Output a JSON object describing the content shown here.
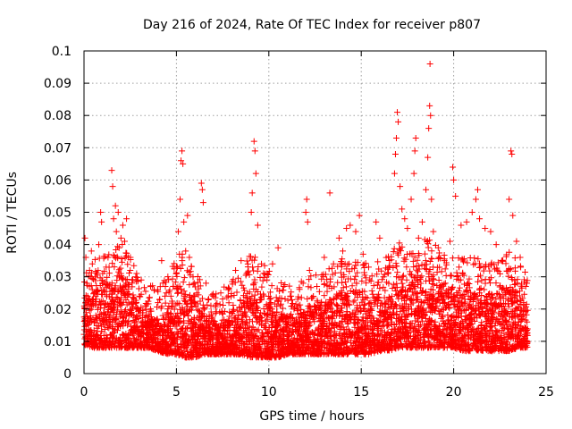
{
  "chart_data": {
    "type": "scatter",
    "title": "Day 216 of 2024, Rate Of TEC Index for receiver p807",
    "xlabel": "GPS time / hours",
    "ylabel": "ROTI / TECUs",
    "xlim": [
      0,
      25
    ],
    "ylim": [
      0,
      0.1
    ],
    "x_ticks": [
      "0",
      "5",
      "10",
      "15",
      "20",
      "25"
    ],
    "y_ticks": [
      "0",
      "0.01",
      "0.02",
      "0.03",
      "0.04",
      "0.05",
      "0.06",
      "0.07",
      "0.08",
      "0.09",
      "0.1"
    ],
    "grid": true,
    "marker": "+",
    "color": "#ff0000",
    "points": [
      [
        0.05,
        0.042
      ],
      [
        0.1,
        0.036
      ],
      [
        0.15,
        0.028
      ],
      [
        0.2,
        0.024
      ],
      [
        0.3,
        0.032
      ],
      [
        0.4,
        0.038
      ],
      [
        0.45,
        0.034
      ],
      [
        0.6,
        0.03
      ],
      [
        0.8,
        0.04
      ],
      [
        0.9,
        0.05
      ],
      [
        0.95,
        0.047
      ],
      [
        1.0,
        0.028
      ],
      [
        1.2,
        0.033
      ],
      [
        1.3,
        0.036
      ],
      [
        1.5,
        0.063
      ],
      [
        1.55,
        0.058
      ],
      [
        1.6,
        0.048
      ],
      [
        1.7,
        0.052
      ],
      [
        1.75,
        0.044
      ],
      [
        1.85,
        0.05
      ],
      [
        1.9,
        0.039
      ],
      [
        2.0,
        0.042
      ],
      [
        2.1,
        0.046
      ],
      [
        2.2,
        0.041
      ],
      [
        2.3,
        0.048
      ],
      [
        2.4,
        0.036
      ],
      [
        2.5,
        0.032
      ],
      [
        2.6,
        0.029
      ],
      [
        2.8,
        0.03
      ],
      [
        3.0,
        0.024
      ],
      [
        3.3,
        0.021
      ],
      [
        3.6,
        0.02
      ],
      [
        4.0,
        0.022
      ],
      [
        4.2,
        0.035
      ],
      [
        4.4,
        0.027
      ],
      [
        4.7,
        0.024
      ],
      [
        5.0,
        0.031
      ],
      [
        5.1,
        0.044
      ],
      [
        5.2,
        0.054
      ],
      [
        5.25,
        0.066
      ],
      [
        5.3,
        0.069
      ],
      [
        5.35,
        0.065
      ],
      [
        5.4,
        0.047
      ],
      [
        5.5,
        0.038
      ],
      [
        5.6,
        0.049
      ],
      [
        5.7,
        0.036
      ],
      [
        5.9,
        0.03
      ],
      [
        6.1,
        0.025
      ],
      [
        6.35,
        0.059
      ],
      [
        6.4,
        0.057
      ],
      [
        6.45,
        0.053
      ],
      [
        6.6,
        0.028
      ],
      [
        7.0,
        0.024
      ],
      [
        7.4,
        0.025
      ],
      [
        7.8,
        0.026
      ],
      [
        8.2,
        0.032
      ],
      [
        8.5,
        0.035
      ],
      [
        8.8,
        0.031
      ],
      [
        9.05,
        0.05
      ],
      [
        9.1,
        0.056
      ],
      [
        9.2,
        0.072
      ],
      [
        9.25,
        0.069
      ],
      [
        9.3,
        0.062
      ],
      [
        9.4,
        0.046
      ],
      [
        9.6,
        0.034
      ],
      [
        9.9,
        0.029
      ],
      [
        10.2,
        0.034
      ],
      [
        10.5,
        0.039
      ],
      [
        10.8,
        0.027
      ],
      [
        11.2,
        0.024
      ],
      [
        11.6,
        0.021
      ],
      [
        12.0,
        0.05
      ],
      [
        12.05,
        0.054
      ],
      [
        12.1,
        0.047
      ],
      [
        12.2,
        0.032
      ],
      [
        12.6,
        0.027
      ],
      [
        13.0,
        0.036
      ],
      [
        13.3,
        0.056
      ],
      [
        13.5,
        0.034
      ],
      [
        13.8,
        0.042
      ],
      [
        14.0,
        0.038
      ],
      [
        14.2,
        0.045
      ],
      [
        14.4,
        0.046
      ],
      [
        14.7,
        0.044
      ],
      [
        14.9,
        0.049
      ],
      [
        15.1,
        0.037
      ],
      [
        15.4,
        0.033
      ],
      [
        15.8,
        0.047
      ],
      [
        16.0,
        0.042
      ],
      [
        16.2,
        0.03
      ],
      [
        16.5,
        0.033
      ],
      [
        16.8,
        0.062
      ],
      [
        16.85,
        0.068
      ],
      [
        16.9,
        0.073
      ],
      [
        16.95,
        0.081
      ],
      [
        17.0,
        0.078
      ],
      [
        17.1,
        0.058
      ],
      [
        17.2,
        0.051
      ],
      [
        17.35,
        0.048
      ],
      [
        17.5,
        0.045
      ],
      [
        17.7,
        0.054
      ],
      [
        17.85,
        0.062
      ],
      [
        17.9,
        0.069
      ],
      [
        17.95,
        0.073
      ],
      [
        18.1,
        0.042
      ],
      [
        18.3,
        0.047
      ],
      [
        18.5,
        0.057
      ],
      [
        18.6,
        0.067
      ],
      [
        18.65,
        0.076
      ],
      [
        18.7,
        0.083
      ],
      [
        18.72,
        0.096
      ],
      [
        18.75,
        0.08
      ],
      [
        18.8,
        0.054
      ],
      [
        18.9,
        0.044
      ],
      [
        19.2,
        0.036
      ],
      [
        19.5,
        0.035
      ],
      [
        19.8,
        0.041
      ],
      [
        19.95,
        0.064
      ],
      [
        20.0,
        0.06
      ],
      [
        20.1,
        0.055
      ],
      [
        20.4,
        0.046
      ],
      [
        20.7,
        0.047
      ],
      [
        21.0,
        0.05
      ],
      [
        21.2,
        0.054
      ],
      [
        21.3,
        0.057
      ],
      [
        21.4,
        0.048
      ],
      [
        21.7,
        0.045
      ],
      [
        22.0,
        0.044
      ],
      [
        22.3,
        0.04
      ],
      [
        22.6,
        0.035
      ],
      [
        23.0,
        0.054
      ],
      [
        23.1,
        0.069
      ],
      [
        23.15,
        0.068
      ],
      [
        23.2,
        0.049
      ],
      [
        23.4,
        0.041
      ],
      [
        23.6,
        0.036
      ],
      [
        23.9,
        0.027
      ]
    ],
    "dense_envelope": [
      [
        0,
        0.009,
        0.022
      ],
      [
        0.5,
        0.008,
        0.025
      ],
      [
        1,
        0.008,
        0.027
      ],
      [
        1.5,
        0.008,
        0.03
      ],
      [
        2,
        0.008,
        0.031
      ],
      [
        2.5,
        0.008,
        0.027
      ],
      [
        3,
        0.008,
        0.02
      ],
      [
        3.5,
        0.008,
        0.018
      ],
      [
        4,
        0.007,
        0.017
      ],
      [
        4.5,
        0.006,
        0.02
      ],
      [
        5,
        0.006,
        0.027
      ],
      [
        5.5,
        0.005,
        0.028
      ],
      [
        6,
        0.005,
        0.022
      ],
      [
        6.5,
        0.006,
        0.018
      ],
      [
        7,
        0.006,
        0.017
      ],
      [
        7.5,
        0.006,
        0.017
      ],
      [
        8,
        0.006,
        0.019
      ],
      [
        8.5,
        0.006,
        0.022
      ],
      [
        9,
        0.005,
        0.027
      ],
      [
        9.5,
        0.005,
        0.026
      ],
      [
        10,
        0.005,
        0.022
      ],
      [
        10.5,
        0.005,
        0.019
      ],
      [
        11,
        0.006,
        0.018
      ],
      [
        11.5,
        0.006,
        0.018
      ],
      [
        12,
        0.006,
        0.02
      ],
      [
        12.5,
        0.006,
        0.021
      ],
      [
        13,
        0.006,
        0.022
      ],
      [
        13.5,
        0.006,
        0.024
      ],
      [
        14,
        0.006,
        0.026
      ],
      [
        14.5,
        0.006,
        0.027
      ],
      [
        15,
        0.006,
        0.025
      ],
      [
        15.5,
        0.006,
        0.024
      ],
      [
        16,
        0.007,
        0.025
      ],
      [
        16.5,
        0.007,
        0.027
      ],
      [
        17,
        0.008,
        0.031
      ],
      [
        17.5,
        0.008,
        0.029
      ],
      [
        18,
        0.008,
        0.03
      ],
      [
        18.5,
        0.008,
        0.033
      ],
      [
        19,
        0.008,
        0.03
      ],
      [
        19.5,
        0.008,
        0.027
      ],
      [
        20,
        0.008,
        0.026
      ],
      [
        20.5,
        0.007,
        0.026
      ],
      [
        21,
        0.007,
        0.027
      ],
      [
        21.5,
        0.007,
        0.026
      ],
      [
        22,
        0.007,
        0.025
      ],
      [
        22.5,
        0.007,
        0.026
      ],
      [
        23,
        0.007,
        0.028
      ],
      [
        23.5,
        0.008,
        0.025
      ],
      [
        24,
        0.008,
        0.022
      ]
    ]
  }
}
